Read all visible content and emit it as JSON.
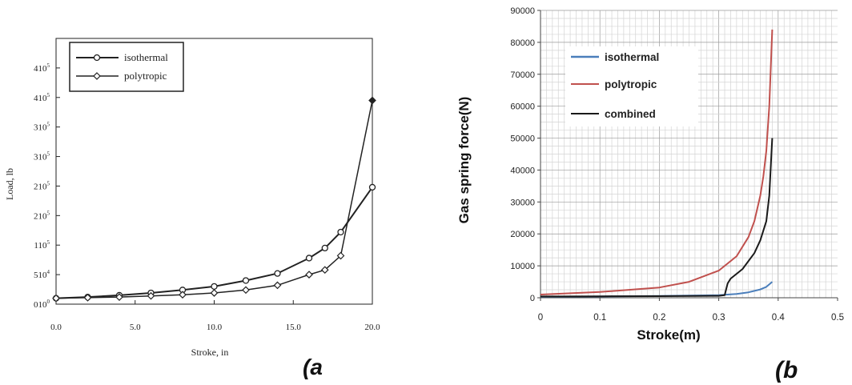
{
  "chart_data": [
    {
      "type": "line",
      "xlabel": "Stroke, in",
      "ylabel": "Load, lb",
      "panel_label": "(a",
      "xlim": [
        0,
        20
      ],
      "ylim": [
        0,
        4.5
      ],
      "x_ticks": [
        0,
        5,
        10,
        15,
        20
      ],
      "x_tick_labels": [
        "0.0",
        "5.0",
        "10.0",
        "15.0",
        "20.0"
      ],
      "y_tick_values": [
        0,
        0.5,
        1.0,
        1.5,
        2.0,
        2.5,
        3.0,
        3.5,
        4.0
      ],
      "y_tick_labels": [
        {
          "base": "010",
          "exp": "0"
        },
        {
          "base": "510",
          "exp": "4"
        },
        {
          "base": "110",
          "exp": "5"
        },
        {
          "base": "210",
          "exp": "5"
        },
        {
          "base": "210",
          "exp": "5"
        },
        {
          "base": "310",
          "exp": "5"
        },
        {
          "base": "310",
          "exp": "5"
        },
        {
          "base": "410",
          "exp": "5"
        },
        {
          "base": "410",
          "exp": "5"
        }
      ],
      "legend_position": "top-left",
      "series": [
        {
          "name": "isothermal",
          "x": [
            0,
            2,
            4,
            6,
            8,
            10,
            12,
            14,
            16,
            17,
            18,
            20
          ],
          "y": [
            0.1,
            0.12,
            0.15,
            0.19,
            0.24,
            0.3,
            0.4,
            0.52,
            0.78,
            0.95,
            1.22,
            1.98
          ],
          "marker": "circle"
        },
        {
          "name": "polytropic",
          "x": [
            0,
            2,
            4,
            6,
            8,
            10,
            12,
            14,
            16,
            17,
            18,
            20
          ],
          "y": [
            0.1,
            0.11,
            0.12,
            0.14,
            0.16,
            0.19,
            0.24,
            0.32,
            0.5,
            0.58,
            0.82,
            3.45
          ],
          "marker": "diamond"
        }
      ]
    },
    {
      "type": "line",
      "xlabel": "Stroke(m)",
      "ylabel": "Gas spring force(N)",
      "panel_label": "(b",
      "xlim": [
        0,
        0.5
      ],
      "ylim": [
        0,
        90000
      ],
      "x_ticks": [
        0,
        0.1,
        0.2,
        0.3,
        0.4,
        0.5
      ],
      "x_tick_labels": [
        "0",
        "0.1",
        "0.2",
        "0.3",
        "0.4",
        "0.5"
      ],
      "y_ticks": [
        0,
        10000,
        20000,
        30000,
        40000,
        50000,
        60000,
        70000,
        80000,
        90000
      ],
      "y_tick_labels": [
        "0",
        "10000",
        "20000",
        "30000",
        "40000",
        "50000",
        "60000",
        "70000",
        "80000",
        "90000"
      ],
      "grid": true,
      "legend_position": "top-left",
      "series": [
        {
          "name": "isothermal",
          "color": "#4a7ebb",
          "x": [
            0,
            0.1,
            0.2,
            0.3,
            0.33,
            0.35,
            0.37,
            0.38,
            0.39
          ],
          "y": [
            300,
            400,
            550,
            800,
            1200,
            1700,
            2600,
            3400,
            5000
          ]
        },
        {
          "name": "polytropic",
          "color": "#c0504d",
          "x": [
            0,
            0.1,
            0.2,
            0.25,
            0.3,
            0.33,
            0.35,
            0.36,
            0.37,
            0.375,
            0.38,
            0.385,
            0.39
          ],
          "y": [
            1000,
            1800,
            3200,
            5000,
            8500,
            13000,
            19000,
            24000,
            32000,
            38000,
            46000,
            60000,
            84000
          ]
        },
        {
          "name": "combined",
          "color": "#1a1a1a",
          "x": [
            0,
            0.1,
            0.2,
            0.3,
            0.31,
            0.315,
            0.32,
            0.34,
            0.36,
            0.37,
            0.38,
            0.385,
            0.39
          ],
          "y": [
            400,
            450,
            500,
            600,
            800,
            4500,
            6000,
            9000,
            14000,
            18000,
            24000,
            32000,
            50000
          ]
        }
      ]
    }
  ]
}
